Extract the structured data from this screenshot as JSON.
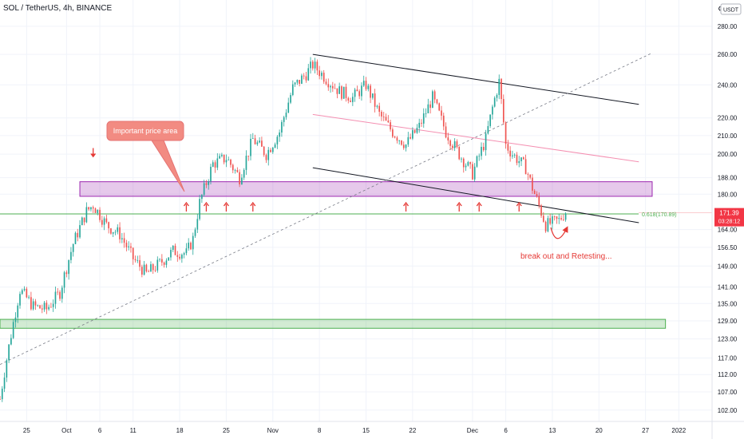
{
  "header": {
    "symbol_title": "SOL / TetherUS, 4h, BINANCE"
  },
  "currency_badge": "USDT",
  "top_right_glyph": "⚙",
  "price_tag": {
    "price": "171.39",
    "countdown": "03:28:12",
    "color": "#f23645"
  },
  "chart_data": {
    "type": "candlestick",
    "y_scale": "log",
    "ylim": [
      99,
      300
    ],
    "y_ticks": [
      "280.00",
      "260.00",
      "240.00",
      "220.00",
      "210.00",
      "200.00",
      "188.00",
      "180.00",
      "164.00",
      "156.50",
      "149.00",
      "141.00",
      "135.00",
      "129.00",
      "123.00",
      "117.00",
      "112.00",
      "107.00",
      "102.00"
    ],
    "y_tick_values": [
      280,
      260,
      240,
      220,
      210,
      200,
      188,
      180,
      164,
      156.5,
      149,
      141,
      135,
      129,
      123,
      117,
      112,
      107,
      102
    ],
    "x_ticks": [
      "25",
      "Oct",
      "6",
      "11",
      "18",
      "25",
      "Nov",
      "8",
      "15",
      "22",
      "Dec",
      "6",
      "13",
      "20",
      "27",
      "2022"
    ],
    "x_range": [
      "2021-09-21",
      "2022-01-06"
    ],
    "x_tick_dates": [
      "2021-09-25",
      "2021-10-01",
      "2021-10-06",
      "2021-10-11",
      "2021-10-18",
      "2021-10-25",
      "2021-11-01",
      "2021-11-08",
      "2021-11-15",
      "2021-11-22",
      "2021-12-01",
      "2021-12-06",
      "2021-12-13",
      "2021-12-20",
      "2021-12-27",
      "2022-01-01"
    ],
    "price_path": [
      [
        "2021-09-21",
        105
      ],
      [
        "2021-09-24",
        140
      ],
      [
        "2021-09-26",
        134
      ],
      [
        "2021-09-28",
        133
      ],
      [
        "2021-09-30",
        139
      ],
      [
        "2021-10-02",
        158
      ],
      [
        "2021-10-04",
        172
      ],
      [
        "2021-10-05",
        175
      ],
      [
        "2021-10-07",
        166
      ],
      [
        "2021-10-09",
        162
      ],
      [
        "2021-10-11",
        152
      ],
      [
        "2021-10-13",
        146
      ],
      [
        "2021-10-15",
        150
      ],
      [
        "2021-10-17",
        155
      ],
      [
        "2021-10-19",
        154
      ],
      [
        "2021-10-20",
        160
      ],
      [
        "2021-10-21",
        176
      ],
      [
        "2021-10-23",
        195
      ],
      [
        "2021-10-25",
        198
      ],
      [
        "2021-10-27",
        188
      ],
      [
        "2021-10-29",
        208
      ],
      [
        "2021-10-31",
        200
      ],
      [
        "2021-11-02",
        212
      ],
      [
        "2021-11-04",
        238
      ],
      [
        "2021-11-06",
        247
      ],
      [
        "2021-11-07",
        253
      ],
      [
        "2021-11-09",
        244
      ],
      [
        "2021-11-11",
        236
      ],
      [
        "2021-11-13",
        232
      ],
      [
        "2021-11-15",
        240
      ],
      [
        "2021-11-17",
        222
      ],
      [
        "2021-11-19",
        212
      ],
      [
        "2021-11-21",
        205
      ],
      [
        "2021-11-23",
        215
      ],
      [
        "2021-11-25",
        232
      ],
      [
        "2021-11-27",
        212
      ],
      [
        "2021-11-29",
        200
      ],
      [
        "2021-12-01",
        190
      ],
      [
        "2021-12-03",
        208
      ],
      [
        "2021-12-04",
        226
      ],
      [
        "2021-12-05",
        242
      ],
      [
        "2021-12-06",
        205
      ],
      [
        "2021-12-07",
        200
      ],
      [
        "2021-12-09",
        193
      ],
      [
        "2021-12-10",
        183
      ],
      [
        "2021-12-12",
        166
      ],
      [
        "2021-12-14",
        168
      ],
      [
        "2021-12-15",
        172
      ]
    ],
    "last_price": 171.39,
    "annotations": [
      {
        "text": "Important price area",
        "kind": "callout"
      },
      {
        "text": "break out and Retesting...",
        "kind": "label",
        "color": "#e53935"
      },
      {
        "text": "0.618(170.89)",
        "kind": "fib-level",
        "value": 170.89,
        "color": "#4caf50"
      }
    ],
    "zones": [
      {
        "name": "resistance-zone",
        "from_date": "2021-10-03",
        "to_date": "2021-12-28",
        "low": 179,
        "high": 186,
        "color": "#9c27b0"
      },
      {
        "name": "support-zone",
        "from_date": "2021-09-21",
        "to_date": "2021-12-30",
        "low": 126.5,
        "high": 129.5,
        "color": "#4caf50"
      }
    ],
    "trend_lines": [
      {
        "name": "channel-top",
        "from": [
          "2021-11-07",
          260
        ],
        "to": [
          "2021-12-26",
          228
        ],
        "style": "solid",
        "color": "#131722"
      },
      {
        "name": "channel-bottom",
        "from": [
          "2021-11-07",
          193
        ],
        "to": [
          "2021-12-26",
          167
        ],
        "style": "solid",
        "color": "#131722"
      },
      {
        "name": "mid-line",
        "from": [
          "2021-11-07",
          222
        ],
        "to": [
          "2021-12-26",
          196
        ],
        "style": "solid",
        "color": "#f48fb1"
      },
      {
        "name": "rising-trend",
        "from": [
          "2021-09-21",
          115
        ],
        "to": [
          "2021-12-28",
          261
        ],
        "style": "dashed",
        "color": "#787b86"
      }
    ],
    "hlines": [
      {
        "name": "fib-line",
        "value": 170.89,
        "color": "#4caf50"
      }
    ],
    "up_arrow_dates": [
      "2021-10-19",
      "2021-10-22",
      "2021-10-25",
      "2021-10-29",
      "2021-11-21",
      "2021-11-29",
      "2021-12-02",
      "2021-12-08"
    ],
    "down_arrow_date": "2021-10-05",
    "colors": {
      "up": "#26a69a",
      "down": "#ef5350",
      "grid": "#f0f3fa"
    }
  }
}
